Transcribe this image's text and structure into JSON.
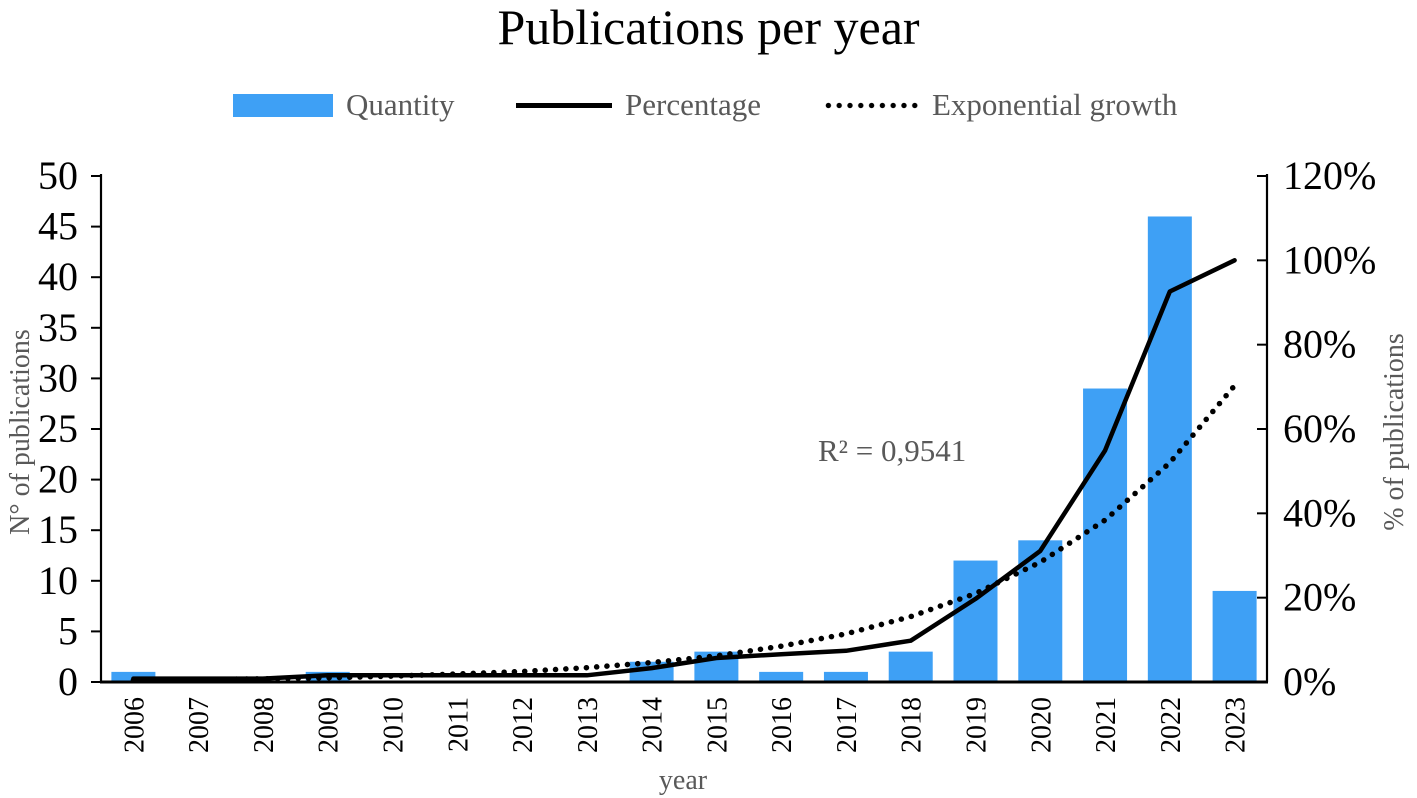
{
  "title": "Publications per year",
  "legend": {
    "items": [
      {
        "label": "Quantity",
        "swatch": "bar"
      },
      {
        "label": "Percentage",
        "swatch": "solid-line"
      },
      {
        "label": "Exponential growth",
        "swatch": "dotted-line"
      }
    ]
  },
  "colors": {
    "bar_fill": "#3EA0F5",
    "line": "#000000",
    "dotted_line": "#000000",
    "axis": "#000000",
    "tick_text": "#000000",
    "muted_text": "#595959"
  },
  "chart_data": {
    "type": "bar",
    "subtype": "combo-bar-line-dual-axis",
    "title": "Publications per year",
    "categories": [
      "2006",
      "2007",
      "2008",
      "2009",
      "2010",
      "2011",
      "2012",
      "2013",
      "2014",
      "2015",
      "2016",
      "2017",
      "2018",
      "2019",
      "2020",
      "2021",
      "2022",
      "2023"
    ],
    "series": [
      {
        "name": "Quantity",
        "type": "bar",
        "axis": "left",
        "values": [
          1,
          0,
          0,
          1,
          0,
          0,
          0,
          0,
          2,
          3,
          1,
          1,
          3,
          12,
          14,
          29,
          46,
          9
        ]
      },
      {
        "name": "Percentage",
        "type": "line",
        "axis": "right",
        "unit": "%",
        "values": [
          0.8,
          0.8,
          0.8,
          1.6,
          1.6,
          1.6,
          1.6,
          1.6,
          3.3,
          5.7,
          6.6,
          7.4,
          9.8,
          19.7,
          31.1,
          54.9,
          92.6,
          100.0
        ]
      },
      {
        "name": "Exponential growth",
        "type": "dotted-line",
        "axis": "right",
        "unit": "%",
        "values": [
          0.4,
          0.55,
          0.75,
          1.0,
          1.4,
          1.9,
          2.5,
          3.4,
          4.6,
          6.2,
          8.5,
          11.4,
          15.5,
          21.0,
          28.4,
          38.4,
          52.0,
          70.3
        ]
      }
    ],
    "left_axis": {
      "label": "N° of publications",
      "min": 0,
      "max": 50,
      "step": 5,
      "ticks": [
        "0",
        "5",
        "10",
        "15",
        "20",
        "25",
        "30",
        "35",
        "40",
        "45",
        "50"
      ]
    },
    "right_axis": {
      "label": "% of publications",
      "min": 0,
      "max": 120,
      "step": 20,
      "ticks": [
        "0%",
        "20%",
        "40%",
        "60%",
        "80%",
        "100%",
        "120%"
      ]
    },
    "x_axis": {
      "label": "year"
    },
    "annotation": "R² = 0,9541",
    "grid": false,
    "legend_position": "top"
  }
}
